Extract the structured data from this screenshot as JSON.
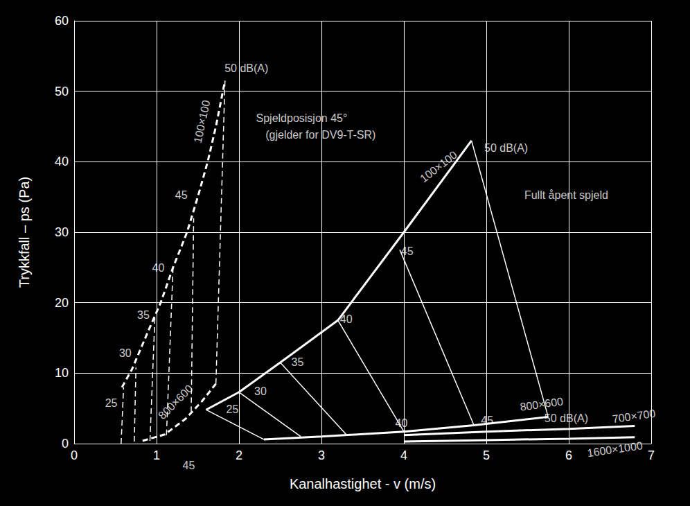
{
  "chart_data": {
    "type": "line",
    "x_label": "Kanalhastighet - v (m/s)",
    "y_label": "Trykkfall – ps (Pa)",
    "xlim": [
      0,
      7
    ],
    "xticks": [
      0,
      1,
      2,
      3,
      4,
      5,
      6,
      7
    ],
    "ylim": [
      0,
      60
    ],
    "yticks": [
      0,
      10,
      20,
      30,
      40,
      50,
      60
    ],
    "grid": true,
    "series": [
      {
        "name": "100×100",
        "color": "#ffffff",
        "line_style": "dashed",
        "x": [
          0.58,
          0.7,
          0.9,
          1.05,
          1.2,
          1.37,
          1.5,
          1.62,
          1.72,
          1.83
        ],
        "values": [
          8,
          10.5,
          16,
          20,
          25,
          30,
          35,
          40,
          45,
          51.5
        ]
      },
      {
        "name": "800×600",
        "color": "#ffffff",
        "line_style": "dashed",
        "x": [
          0.83,
          1.1,
          1.35,
          1.55,
          1.72
        ],
        "values": [
          0.4,
          1.3,
          3.5,
          6,
          8.5
        ]
      },
      {
        "name": "25",
        "color": "#ffffff",
        "line_style": "dashed",
        "x": [
          0.57,
          0.6
        ],
        "values": [
          0,
          8
        ]
      },
      {
        "name": "30",
        "color": "#ffffff",
        "line_style": "dashed",
        "x": [
          0.73,
          0.75
        ],
        "values": [
          0.3,
          10.8
        ]
      },
      {
        "name": "35",
        "color": "#ffffff",
        "line_style": "dashed",
        "x": [
          0.92,
          0.98
        ],
        "values": [
          0.4,
          18
        ]
      },
      {
        "name": "40",
        "color": "#ffffff",
        "line_style": "dashed",
        "x": [
          1.12,
          1.2
        ],
        "values": [
          1.2,
          25
        ]
      },
      {
        "name": "45",
        "color": "#ffffff",
        "line_style": "dashed",
        "x": [
          1.42,
          1.45
        ],
        "values": [
          4.5,
          32
        ]
      },
      {
        "name": "50 dB(A)",
        "color": "#ffffff",
        "line_style": "dashed",
        "x": [
          1.72,
          1.83
        ],
        "values": [
          8.5,
          51.5
        ]
      },
      {
        "name": "100×100",
        "color": "#ffffff",
        "line_style": "solid",
        "x": [
          1.6,
          2,
          2.5,
          3.2,
          4,
          4.82
        ],
        "values": [
          4.8,
          7.3,
          11.5,
          17.5,
          30,
          43
        ]
      },
      {
        "name": "800×600",
        "color": "#ffffff",
        "line_style": "solid",
        "x": [
          2.3,
          3,
          4,
          4.85,
          5.75
        ],
        "values": [
          0.6,
          1.0,
          1.7,
          2.6,
          3.8
        ]
      },
      {
        "name": "700×700",
        "color": "#ffffff",
        "line_style": "solid",
        "x": [
          4,
          5,
          6,
          6.8
        ],
        "values": [
          1.2,
          1.7,
          2.1,
          2.5
        ]
      },
      {
        "name": "1600×1000",
        "color": "#ffffff",
        "line_style": "solid",
        "x": [
          4,
          5,
          6,
          6.8
        ],
        "values": [
          0.3,
          0.5,
          0.7,
          0.9
        ]
      },
      {
        "name": "25",
        "color": "#ffffff",
        "line_style": "solid",
        "x": [
          1.6,
          2.3
        ],
        "values": [
          4.8,
          0.6
        ]
      },
      {
        "name": "30",
        "color": "#ffffff",
        "line_style": "solid",
        "x": [
          2,
          2.75
        ],
        "values": [
          7.3,
          1.0
        ]
      },
      {
        "name": "35",
        "color": "#ffffff",
        "line_style": "solid",
        "x": [
          2.5,
          3.3
        ],
        "values": [
          11.5,
          1.3
        ]
      },
      {
        "name": "40",
        "color": "#ffffff",
        "line_style": "solid",
        "x": [
          3.2,
          4
        ],
        "values": [
          17.5,
          1.7
        ]
      },
      {
        "name": "45",
        "color": "#ffffff",
        "line_style": "solid",
        "x": [
          3.95,
          4.85
        ],
        "values": [
          27.5,
          2.6
        ]
      },
      {
        "name": "50 dB(A)",
        "color": "#ffffff",
        "line_style": "solid",
        "x": [
          4.82,
          5.75
        ],
        "values": [
          43,
          3.8
        ]
      }
    ],
    "annotations": [
      {
        "text": "Spjeldposisjon 45°",
        "x": 2.76,
        "y": 46.2
      },
      {
        "text": "(gjelder for DV9-T-SR)",
        "x": 2.99,
        "y": 43.8
      },
      {
        "text": "Fullt åpent spjeld",
        "x": 5.97,
        "y": 35.3
      },
      {
        "text": "50 dB(A)",
        "x": 2.09,
        "y": 53.3
      },
      {
        "text": "100×100",
        "x": 1.55,
        "y": 45.7
      },
      {
        "text": "45",
        "x": 1.3,
        "y": 35.3
      },
      {
        "text": "40",
        "x": 1.02,
        "y": 24.9
      },
      {
        "text": "35",
        "x": 0.84,
        "y": 18.2
      },
      {
        "text": "30",
        "x": 0.62,
        "y": 12.8
      },
      {
        "text": "25",
        "x": 0.45,
        "y": 5.8
      },
      {
        "text": "800×600",
        "x": 1.23,
        "y": 5.9
      },
      {
        "text": "45",
        "x": 1.39,
        "y": -3.1
      },
      {
        "text": "100×100",
        "x": 4.42,
        "y": 39.3
      },
      {
        "text": "50 dB(A)",
        "x": 5.24,
        "y": 42
      },
      {
        "text": "45",
        "x": 4.04,
        "y": 27.3
      },
      {
        "text": "40",
        "x": 3.3,
        "y": 17.7
      },
      {
        "text": "35",
        "x": 2.71,
        "y": 11.6
      },
      {
        "text": "30",
        "x": 2.26,
        "y": 7.4
      },
      {
        "text": "25",
        "x": 1.92,
        "y": 4.9
      },
      {
        "text": "40",
        "x": 3.97,
        "y": 2.9
      },
      {
        "text": "45",
        "x": 5.01,
        "y": 3.3
      },
      {
        "text": "50 dB(A)",
        "x": 5.97,
        "y": 3.6
      },
      {
        "text": "800×600",
        "x": 5.67,
        "y": 5.6
      },
      {
        "text": "700×700",
        "x": 6.79,
        "y": 3.9
      },
      {
        "text": "1600×1000",
        "x": 6.56,
        "y": -0.8
      }
    ]
  }
}
